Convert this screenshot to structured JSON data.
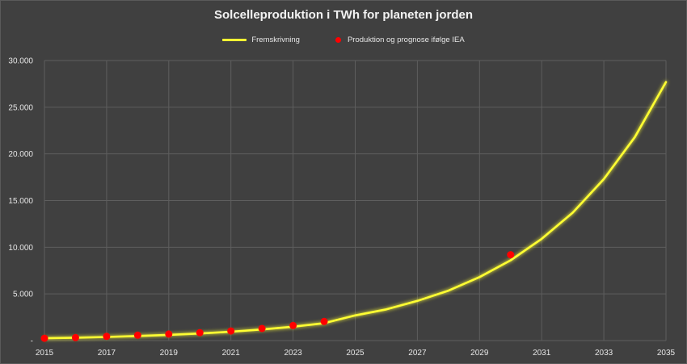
{
  "chart_data": {
    "type": "line",
    "title": "Solcelleproduktion i TWh for planeten jorden",
    "xlabel": "",
    "ylabel": "",
    "xlim": [
      2015,
      2035
    ],
    "ylim": [
      0,
      30000
    ],
    "x_ticks": [
      "2015",
      "2017",
      "2019",
      "2021",
      "2023",
      "2025",
      "2027",
      "2029",
      "2031",
      "2033",
      "2035"
    ],
    "y_ticks": [
      "-",
      "5.000",
      "10.000",
      "15.000",
      "20.000",
      "25.000",
      "30.000"
    ],
    "grid": true,
    "legend_position": "top-center",
    "series": [
      {
        "name": "Fremskrivning",
        "type": "line",
        "color": "#ffff33",
        "x": [
          2015,
          2016,
          2017,
          2018,
          2019,
          2020,
          2021,
          2022,
          2023,
          2024,
          2025,
          2026,
          2027,
          2028,
          2029,
          2030,
          2031,
          2032,
          2033,
          2034,
          2035
        ],
        "y": [
          250,
          310,
          390,
          490,
          610,
          760,
          950,
          1190,
          1490,
          1870,
          2700,
          3350,
          4250,
          5350,
          6800,
          8600,
          10900,
          13700,
          17300,
          21800,
          27700
        ]
      },
      {
        "name": "Produktion og prognose ifølge IEA",
        "type": "scatter",
        "color": "#ff0000",
        "x": [
          2015,
          2016,
          2017,
          2018,
          2019,
          2020,
          2021,
          2022,
          2023,
          2024,
          2030
        ],
        "y": [
          250,
          320,
          450,
          580,
          700,
          850,
          1030,
          1300,
          1620,
          2050,
          9200
        ]
      }
    ]
  }
}
